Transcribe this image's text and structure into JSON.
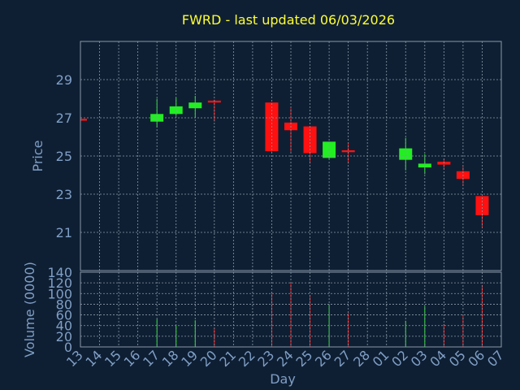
{
  "chart_data": {
    "type": "candlestick",
    "title": "FWRD - last updated 06/03/2026",
    "xlabel": "Day",
    "ylabel": "Price",
    "y2label": "Volume (0000)",
    "categories": [
      "13",
      "14",
      "15",
      "16",
      "17",
      "18",
      "19",
      "20",
      "21",
      "22",
      "23",
      "24",
      "25",
      "26",
      "27",
      "28",
      "01",
      "02",
      "03",
      "04",
      "05",
      "06",
      "07"
    ],
    "open": [
      26.95,
      null,
      null,
      null,
      26.8,
      27.2,
      27.5,
      27.9,
      null,
      null,
      27.8,
      26.75,
      26.55,
      24.9,
      25.3,
      null,
      null,
      24.8,
      24.4,
      24.7,
      24.2,
      22.9,
      null
    ],
    "high": [
      27.0,
      null,
      null,
      null,
      28.0,
      28.05,
      28.15,
      27.95,
      null,
      null,
      27.8,
      27.5,
      26.55,
      25.75,
      25.7,
      null,
      null,
      25.95,
      25.1,
      24.85,
      24.45,
      22.9,
      null
    ],
    "low": [
      26.8,
      null,
      null,
      null,
      26.5,
      27.1,
      27.0,
      26.8,
      null,
      null,
      25.2,
      25.2,
      24.6,
      24.85,
      24.6,
      null,
      null,
      24.25,
      24.05,
      24.3,
      23.45,
      21.3,
      null
    ],
    "close": [
      26.85,
      null,
      null,
      null,
      27.2,
      27.6,
      27.8,
      27.8,
      null,
      null,
      25.25,
      26.35,
      25.15,
      25.75,
      25.2,
      null,
      null,
      25.4,
      24.6,
      24.55,
      23.8,
      21.9,
      null
    ],
    "volume": [
      null,
      null,
      null,
      null,
      52,
      40,
      50,
      35,
      null,
      null,
      102,
      122,
      97,
      80,
      64,
      null,
      null,
      49,
      76,
      43,
      58,
      116,
      null
    ],
    "up_color": "#22ee22",
    "down_color": "#ff1111",
    "ylim": [
      19,
      31
    ],
    "yticks": [
      21,
      23,
      25,
      27,
      29
    ],
    "y2lim": [
      0,
      140
    ],
    "y2ticks": [
      0,
      20,
      40,
      60,
      80,
      100,
      120,
      140
    ],
    "grid": true
  }
}
